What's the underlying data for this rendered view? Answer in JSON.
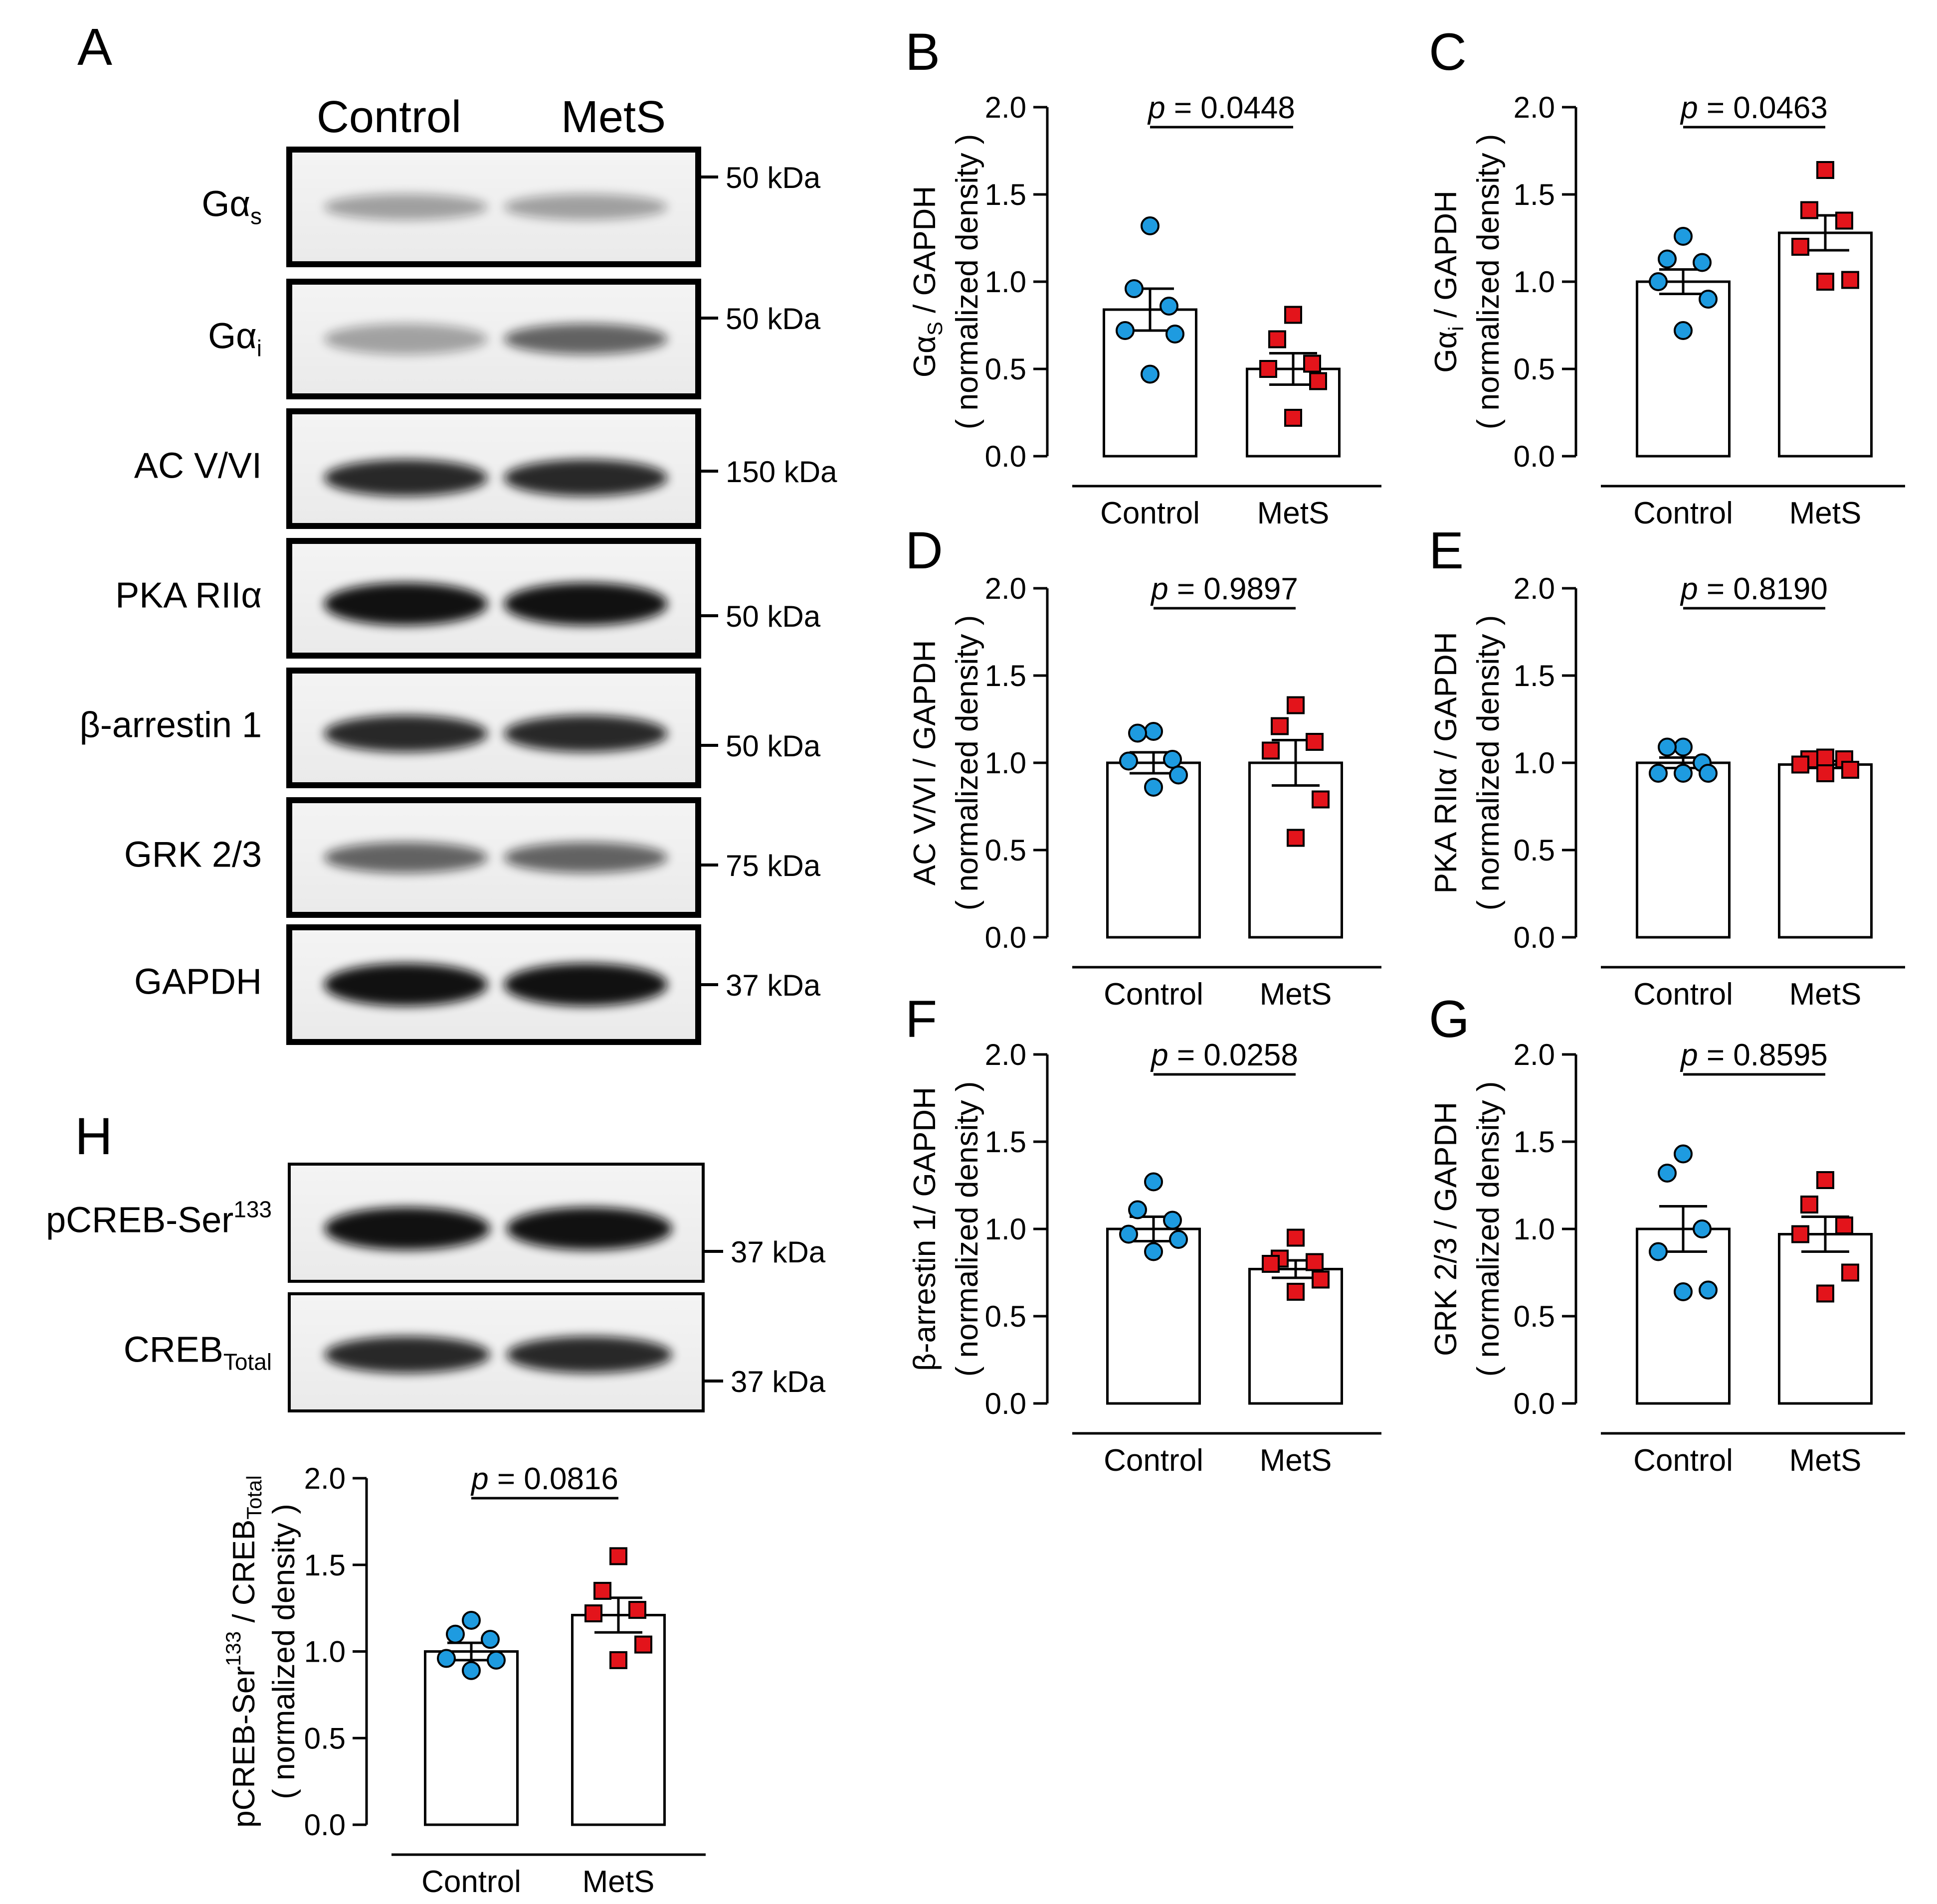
{
  "blot_panels": [
    {
      "letter": "A",
      "lanes": [
        "Control",
        "MetS"
      ],
      "rows": [
        {
          "label": "Gα",
          "sub": "s",
          "kda": "50 kDa",
          "band": "faint"
        },
        {
          "label": "Gα",
          "sub": "i",
          "kda": "50 kDa",
          "band": "medium"
        },
        {
          "label": "AC V/VI",
          "sub": "",
          "kda": "150 kDa",
          "band": "strong"
        },
        {
          "label": "PKA RIIα",
          "sub": "",
          "kda": "50 kDa",
          "band": "verystrong"
        },
        {
          "label": "β-arrestin 1",
          "sub": "",
          "kda": "50 kDa",
          "band": "strong"
        },
        {
          "label": "GRK 2/3",
          "sub": "",
          "kda": "75 kDa",
          "band": "medium"
        },
        {
          "label": "GAPDH",
          "sub": "",
          "kda": "37 kDa",
          "band": "verystrong"
        }
      ]
    },
    {
      "letter": "H",
      "lanes": [],
      "rows": [
        {
          "label": "pCREB-Ser",
          "sup": "133",
          "kda": "37 kDa",
          "band": "verystrong"
        },
        {
          "label": "CREB",
          "sub": "Total",
          "kda": "37 kDa",
          "band": "strong"
        }
      ]
    }
  ],
  "colors": {
    "control_marker": "#1e9be0",
    "mets_marker": "#e3141b",
    "bar_fill": "#ffffff",
    "axis": "#000000"
  },
  "chart_data": [
    {
      "letter": "B",
      "type": "bar",
      "categories": [
        "Control",
        "MetS"
      ],
      "ylabel_parts": [
        "Gα",
        "S",
        " / GAPDH"
      ],
      "ylabel_style": "sub",
      "ylabel2": "( normalized density )",
      "pvalue_prefix": "p",
      "pvalue_text": " = 0.0448",
      "ylim": [
        0,
        2.0
      ],
      "yticks": [
        "0.0",
        "0.5",
        "1.0",
        "1.5",
        "2.0"
      ],
      "means": [
        0.84,
        0.5
      ],
      "sem": [
        0.12,
        0.09
      ],
      "points": [
        [
          1.32,
          0.96,
          0.86,
          0.72,
          0.7,
          0.47
        ],
        [
          0.81,
          0.67,
          0.53,
          0.5,
          0.43,
          0.22
        ]
      ]
    },
    {
      "letter": "C",
      "type": "bar",
      "categories": [
        "Control",
        "MetS"
      ],
      "ylabel_parts": [
        "Gα",
        "i",
        " / GAPDH"
      ],
      "ylabel_style": "sub",
      "ylabel2": "( normalized density )",
      "pvalue_prefix": "p",
      "pvalue_text": " = 0.0463",
      "ylim": [
        0,
        2.0
      ],
      "yticks": [
        "0.0",
        "0.5",
        "1.0",
        "1.5",
        "2.0"
      ],
      "means": [
        1.0,
        1.28
      ],
      "sem": [
        0.07,
        0.1
      ],
      "points": [
        [
          1.26,
          1.13,
          1.11,
          1.0,
          0.9,
          0.72
        ],
        [
          1.64,
          1.41,
          1.35,
          1.2,
          1.01,
          1.0
        ]
      ]
    },
    {
      "letter": "D",
      "type": "bar",
      "categories": [
        "Control",
        "MetS"
      ],
      "ylabel_parts": [
        "AC V/VI / GAPDH"
      ],
      "ylabel_style": "plain",
      "ylabel2": "( normalized density )",
      "pvalue_prefix": "p",
      "pvalue_text": " = 0.9897",
      "ylim": [
        0,
        2.0
      ],
      "yticks": [
        "0.0",
        "0.5",
        "1.0",
        "1.5",
        "2.0"
      ],
      "means": [
        1.0,
        1.0
      ],
      "sem": [
        0.06,
        0.13
      ],
      "points": [
        [
          1.18,
          1.17,
          1.02,
          1.01,
          0.93,
          0.86
        ],
        [
          1.33,
          1.21,
          1.12,
          1.07,
          0.79,
          0.57
        ]
      ]
    },
    {
      "letter": "E",
      "type": "bar",
      "categories": [
        "Control",
        "MetS"
      ],
      "ylabel_parts": [
        "PKA RIIα / GAPDH"
      ],
      "ylabel_style": "plain",
      "ylabel2": "( normalized density )",
      "pvalue_prefix": "p",
      "pvalue_text": " = 0.8190",
      "ylim": [
        0,
        2.0
      ],
      "yticks": [
        "0.0",
        "0.5",
        "1.0",
        "1.5",
        "2.0"
      ],
      "means": [
        1.0,
        0.99
      ],
      "sem": [
        0.03,
        0.02
      ],
      "points": [
        [
          1.09,
          1.09,
          1.0,
          0.94,
          0.94,
          0.94
        ],
        [
          1.03,
          1.02,
          1.02,
          0.99,
          0.96,
          0.94
        ]
      ]
    },
    {
      "letter": "F",
      "type": "bar",
      "categories": [
        "Control",
        "MetS"
      ],
      "ylabel_parts": [
        "β-arrestin 1/ GAPDH"
      ],
      "ylabel_style": "plain",
      "ylabel2": "( normalized density )",
      "pvalue_prefix": "p",
      "pvalue_text": " = 0.0258",
      "ylim": [
        0,
        2.0
      ],
      "yticks": [
        "0.0",
        "0.5",
        "1.0",
        "1.5",
        "2.0"
      ],
      "means": [
        1.0,
        0.77
      ],
      "sem": [
        0.07,
        0.05
      ],
      "points": [
        [
          1.27,
          1.11,
          1.05,
          0.97,
          0.94,
          0.87
        ],
        [
          0.95,
          0.83,
          0.81,
          0.8,
          0.71,
          0.64
        ]
      ]
    },
    {
      "letter": "G",
      "type": "bar",
      "categories": [
        "Control",
        "MetS"
      ],
      "ylabel_parts": [
        "GRK 2/3 / GAPDH"
      ],
      "ylabel_style": "plain",
      "ylabel2": "( normalized density )",
      "pvalue_prefix": "p",
      "pvalue_text": " = 0.8595",
      "ylim": [
        0,
        2.0
      ],
      "yticks": [
        "0.0",
        "0.5",
        "1.0",
        "1.5",
        "2.0"
      ],
      "means": [
        1.0,
        0.97
      ],
      "sem": [
        0.13,
        0.1
      ],
      "points": [
        [
          1.43,
          1.32,
          1.0,
          0.87,
          0.65,
          0.64
        ],
        [
          1.28,
          1.14,
          1.02,
          0.97,
          0.75,
          0.63
        ]
      ]
    },
    {
      "letter": "H",
      "type": "bar",
      "categories": [
        "Control",
        "MetS"
      ],
      "ylabel_parts": [
        "pCREB-Ser",
        "133",
        " / CREB",
        "Total"
      ],
      "ylabel_style": "supsub",
      "ylabel2": "( normalized density )",
      "pvalue_prefix": "p",
      "pvalue_text": " = 0.0816",
      "ylim": [
        0,
        2.0
      ],
      "yticks": [
        "0.0",
        "0.5",
        "1.0",
        "1.5",
        "2.0"
      ],
      "means": [
        1.0,
        1.21
      ],
      "sem": [
        0.05,
        0.1
      ],
      "points": [
        [
          1.18,
          1.1,
          1.07,
          0.96,
          0.95,
          0.89
        ],
        [
          1.55,
          1.35,
          1.24,
          1.22,
          1.04,
          0.95
        ]
      ]
    }
  ]
}
